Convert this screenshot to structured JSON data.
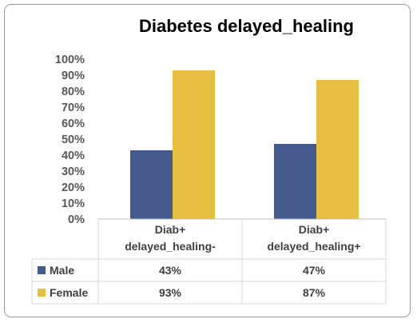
{
  "chart_data": {
    "type": "bar",
    "title": "Diabetes  delayed_healing",
    "categories": [
      [
        "Diab+",
        "delayed_healing-"
      ],
      [
        "Diab+",
        "delayed_healing+"
      ]
    ],
    "series": [
      {
        "name": "Male",
        "values": [
          0.43,
          0.47
        ],
        "labels": [
          "43%",
          "47%"
        ],
        "color": "#44598c",
        "shade": "#374a77"
      },
      {
        "name": "Female",
        "values": [
          0.93,
          0.87
        ],
        "labels": [
          "93%",
          "87%"
        ],
        "color": "#e6be42",
        "shade": "#bb9a2f"
      }
    ],
    "yticks": [
      "0%",
      "10%",
      "20%",
      "30%",
      "40%",
      "50%",
      "60%",
      "70%",
      "80%",
      "90%",
      "100%"
    ],
    "ylim": [
      0,
      1
    ],
    "grid": false,
    "legend": "data-table"
  }
}
